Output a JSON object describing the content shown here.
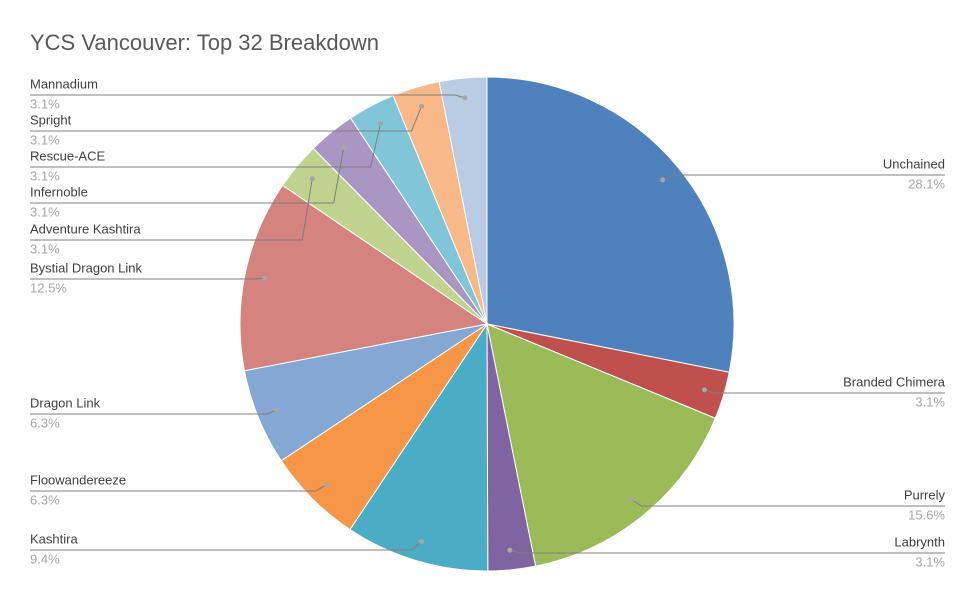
{
  "chart_data": {
    "type": "pie",
    "title": "YCS Vancouver: Top 32 Breakdown",
    "categories": [
      "Unchained",
      "Branded Chimera",
      "Purrely",
      "Labrynth",
      "Kashtira",
      "Floowandereeze",
      "Dragon Link",
      "Bystial Dragon Link",
      "Adventure Kashtira",
      "Infernoble",
      "Rescue-ACE",
      "Spright",
      "Mannadium"
    ],
    "values": [
      28.1,
      3.1,
      15.6,
      3.1,
      9.4,
      6.3,
      6.3,
      12.5,
      3.1,
      3.1,
      3.1,
      3.1,
      3.1
    ],
    "value_labels": [
      "28.1%",
      "3.1%",
      "15.6%",
      "3.1%",
      "9.4%",
      "6.3%",
      "6.3%",
      "12.5%",
      "3.1%",
      "3.1%",
      "3.1%",
      "3.1%",
      "3.1%"
    ],
    "colors": [
      "#4f81bd",
      "#c0504d",
      "#9bbb59",
      "#8064a2",
      "#4bacc6",
      "#f79646",
      "#85a7d3",
      "#d4837e",
      "#bfd38f",
      "#a897c3",
      "#80c6d8",
      "#f9b887",
      "#b9cce4"
    ]
  }
}
